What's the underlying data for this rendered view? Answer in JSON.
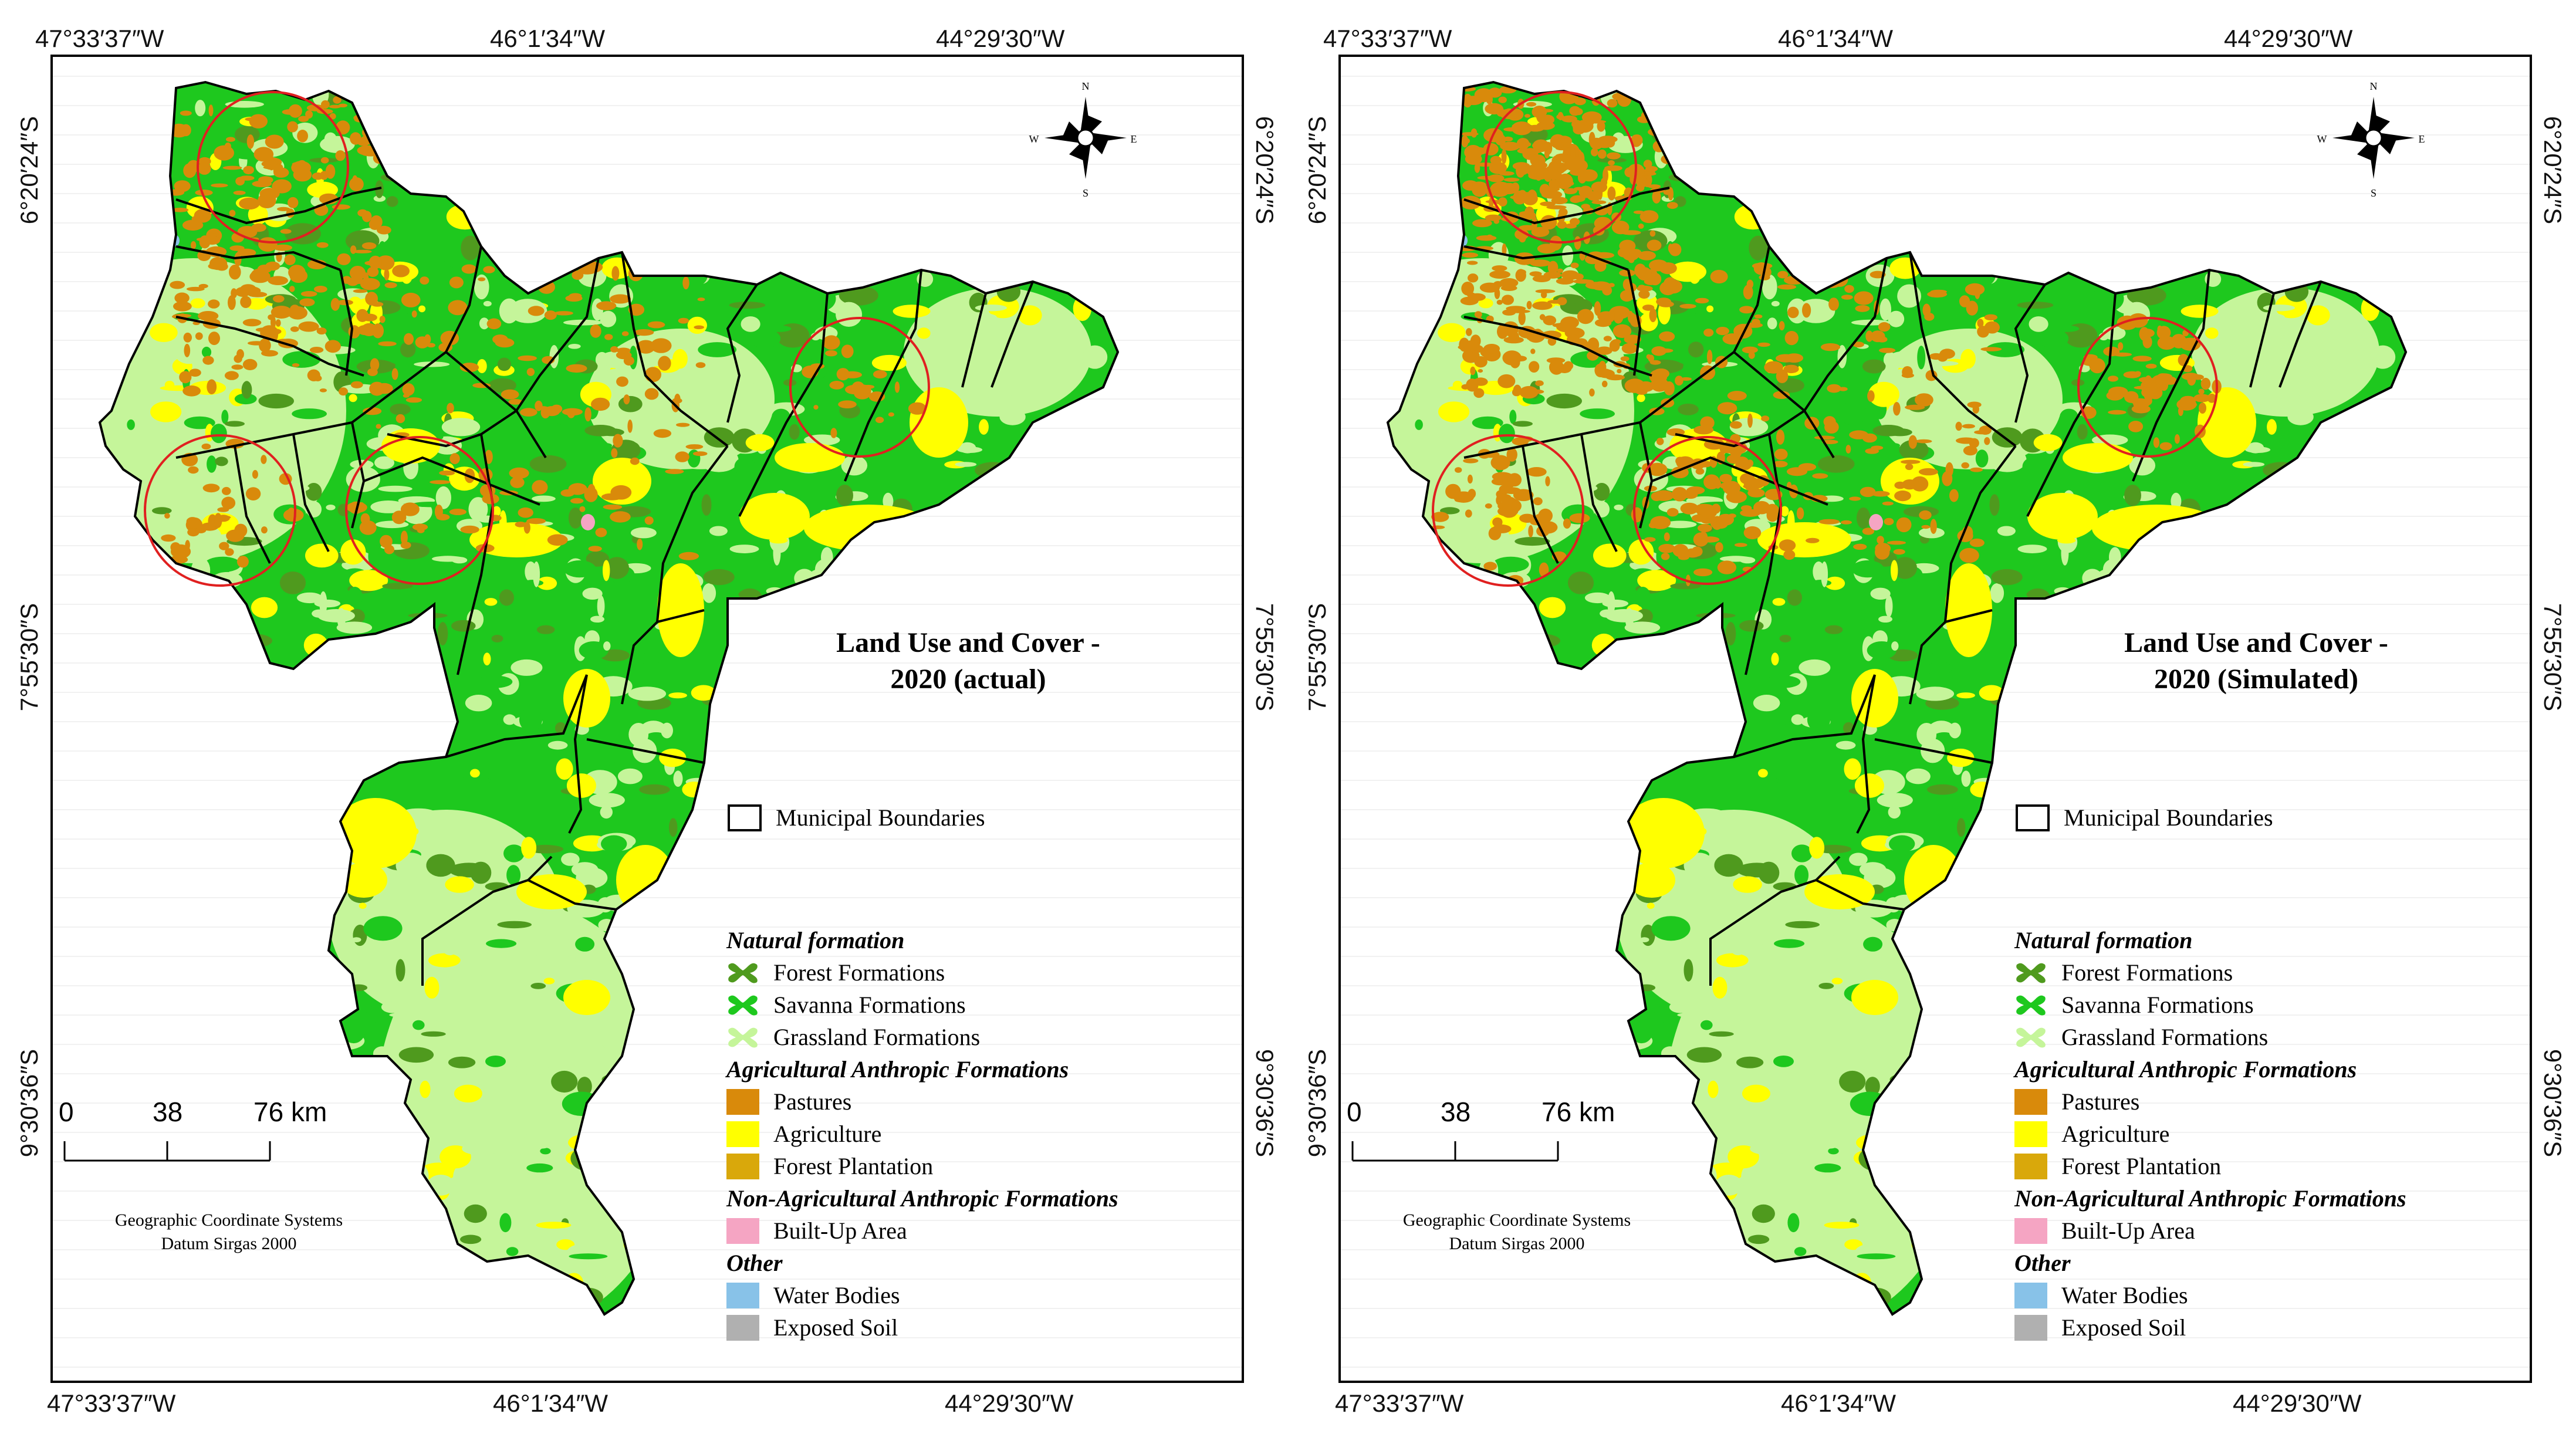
{
  "panels": [
    {
      "title_line1": "Land Use and Cover -",
      "title_line2": "2020 (actual)",
      "variant": "actual",
      "pastures_intensity": 0.35
    },
    {
      "title_line1": "Land Use and Cover -",
      "title_line2": "2020 (Simulated)",
      "variant": "simulated",
      "pastures_intensity": 0.55
    }
  ],
  "coords": {
    "top": [
      "47°33′37″W",
      "46°1′34″W",
      "44°29′30″W"
    ],
    "bottom": [
      "47°33′37″W",
      "46°1′34″W",
      "44°29′30″W"
    ],
    "left": [
      "6°20′24″S",
      "7°55′30″S",
      "9°30′36″S"
    ],
    "right": [
      "6°20′24″S",
      "7°55′30″S",
      "9°30′36″S"
    ]
  },
  "compass": {
    "n": "N",
    "s": "S",
    "e": "E",
    "w": "W"
  },
  "municipal_boundaries": "Municipal Boundaries",
  "legend": {
    "groups": [
      {
        "header": "Natural formation",
        "items": [
          {
            "label": "Forest Formations",
            "color": "#4f9a1e",
            "shape": "blob"
          },
          {
            "label": "Savanna Formations",
            "color": "#1ec81e",
            "shape": "blob"
          },
          {
            "label": "Grassland Formations",
            "color": "#c5f59a",
            "shape": "blob"
          }
        ]
      },
      {
        "header": "Agricultural Anthropic Formations",
        "items": [
          {
            "label": "Pastures",
            "color": "#d98a0b",
            "shape": "square"
          },
          {
            "label": "Agriculture",
            "color": "#ffff00",
            "shape": "square"
          },
          {
            "label": "Forest Plantation",
            "color": "#d9a80b",
            "shape": "square"
          }
        ]
      },
      {
        "header": "Non-Agricultural Anthropic Formations",
        "items": [
          {
            "label": "Built-Up Area",
            "color": "#f5a5c3",
            "shape": "square"
          }
        ]
      },
      {
        "header": "Other",
        "items": [
          {
            "label": "Water Bodies",
            "color": "#88c2e8",
            "shape": "square"
          },
          {
            "label": "Exposed Soil",
            "color": "#b0b0b0",
            "shape": "square"
          }
        ]
      }
    ]
  },
  "scale_bar": {
    "labels": [
      "0",
      "38",
      "76 km"
    ]
  },
  "gcs": {
    "line1": "Geographic Coordinate Systems",
    "line2": "Datum Sirgas 2000"
  },
  "colors": {
    "forest": "#4f9a1e",
    "savanna": "#1ec81e",
    "grassland": "#c5f59a",
    "pastures": "#d98a0b",
    "agriculture": "#ffff00",
    "builtup": "#f5a5c3",
    "water": "#88c2e8",
    "circle": "#e02020"
  }
}
